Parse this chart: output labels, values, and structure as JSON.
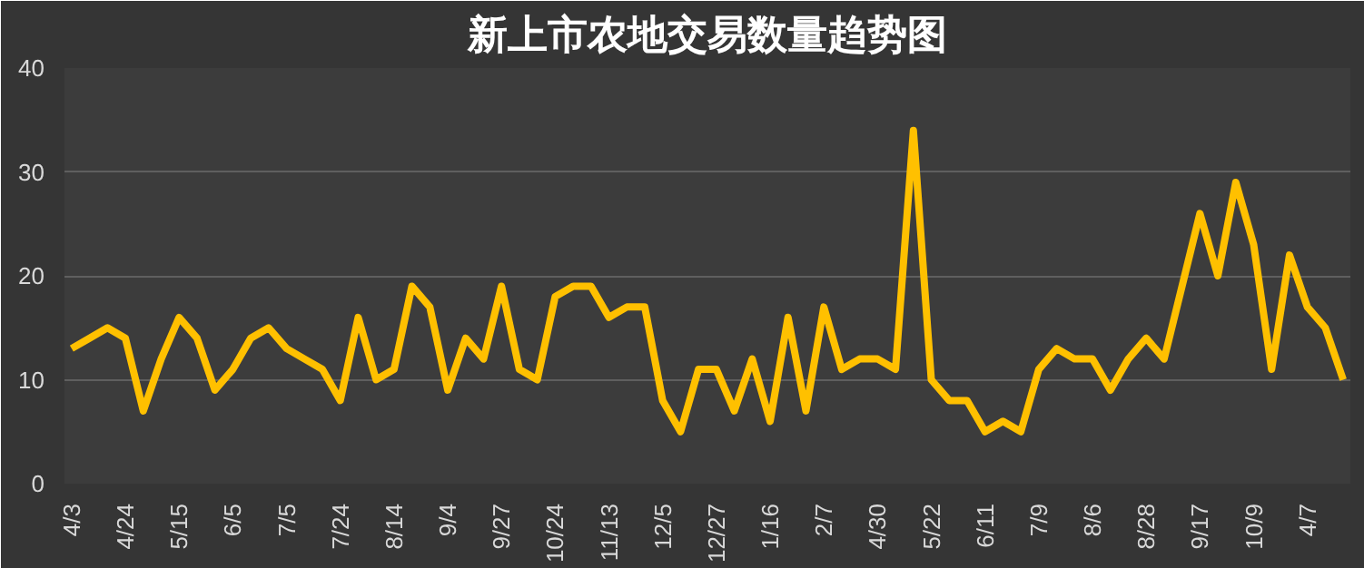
{
  "chart_data": {
    "type": "line",
    "title": "新上市农地交易数量趋势图",
    "categories": [
      "4/3",
      null,
      null,
      "4/24",
      null,
      null,
      "5/15",
      null,
      null,
      "6/5",
      null,
      null,
      "7/5",
      null,
      null,
      "7/24",
      null,
      null,
      "8/14",
      null,
      null,
      "9/4",
      null,
      null,
      "9/27",
      null,
      null,
      "10/24",
      null,
      null,
      "11/13",
      null,
      null,
      "12/5",
      null,
      null,
      "12/27",
      null,
      null,
      "1/16",
      null,
      null,
      "2/7",
      null,
      null,
      "4/30",
      null,
      null,
      "5/22",
      null,
      null,
      "6/11",
      null,
      null,
      "7/9",
      null,
      null,
      "8/6",
      null,
      null,
      "8/28",
      null,
      null,
      "9/17",
      null,
      null,
      "10/9",
      null,
      null,
      "4/7",
      null,
      null
    ],
    "series": [
      {
        "color": "#ffc000",
        "values": [
          13,
          14,
          15,
          14,
          7,
          12,
          16,
          14,
          9,
          11,
          14,
          15,
          13,
          12,
          11,
          8,
          16,
          10,
          11,
          19,
          17,
          9,
          14,
          12,
          19,
          11,
          10,
          18,
          19,
          19,
          16,
          17,
          17,
          8,
          5,
          11,
          11,
          7,
          12,
          6,
          16,
          7,
          17,
          11,
          12,
          12,
          11,
          34,
          10,
          8,
          8,
          5,
          6,
          5,
          11,
          13,
          12,
          12,
          9,
          12,
          14,
          12,
          19,
          26,
          20,
          29,
          23,
          11,
          22,
          17,
          15,
          10
        ]
      }
    ],
    "ylim": [
      0,
      40
    ],
    "yticks": [
      0,
      10,
      20,
      30,
      40
    ],
    "grid": "y",
    "marker": "none",
    "line_style": "solid"
  }
}
